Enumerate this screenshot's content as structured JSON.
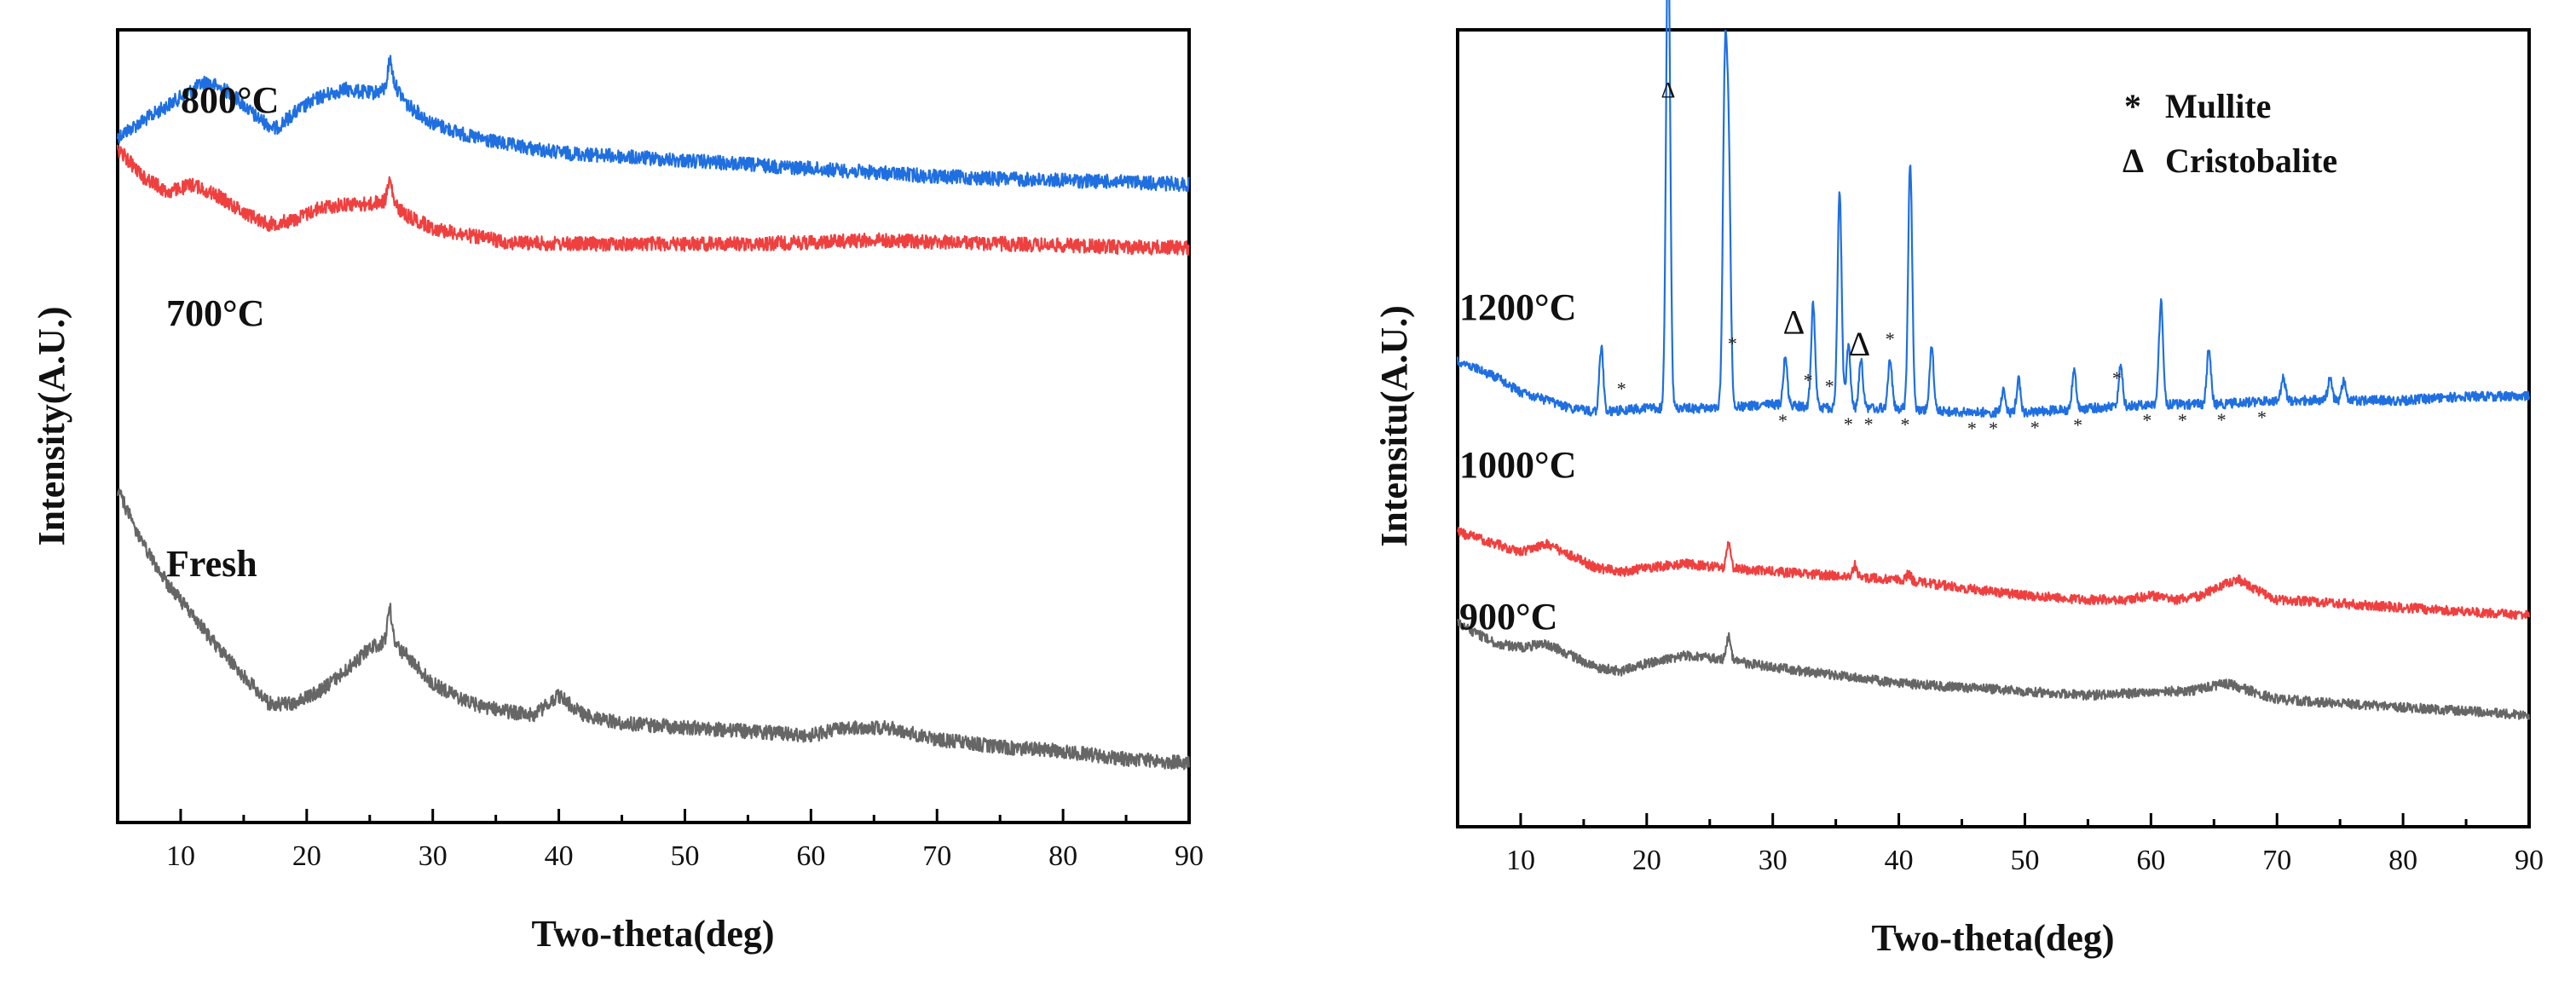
{
  "chart_data": [
    {
      "type": "line",
      "panel": "left",
      "xlabel": "Two-theta(deg)",
      "ylabel": "Intensity(A.U.)",
      "xlim": [
        5,
        90
      ],
      "x_ticks": [
        10,
        20,
        30,
        40,
        50,
        60,
        70,
        80,
        90
      ],
      "y_ticks_shown": false,
      "series": [
        {
          "name": "800°C",
          "color": "#1f6fe0",
          "offset": 0.8,
          "points": [
            [
              5,
              0.115
            ],
            [
              8,
              0.085
            ],
            [
              10,
              0.065
            ],
            [
              12,
              0.045
            ],
            [
              14,
              0.06
            ],
            [
              16,
              0.09
            ],
            [
              17.5,
              0.105
            ],
            [
              19,
              0.085
            ],
            [
              21,
              0.065
            ],
            [
              23,
              0.055
            ],
            [
              25,
              0.06
            ],
            [
              26.5,
              0.055
            ],
            [
              27,
              0.05
            ],
            [
              28,
              0.075
            ],
            [
              30,
              0.098
            ],
            [
              33,
              0.115
            ],
            [
              36,
              0.125
            ],
            [
              40,
              0.135
            ],
            [
              45,
              0.14
            ],
            [
              50,
              0.145
            ],
            [
              55,
              0.15
            ],
            [
              60,
              0.155
            ],
            [
              65,
              0.16
            ],
            [
              70,
              0.165
            ],
            [
              75,
              0.168
            ],
            [
              80,
              0.17
            ],
            [
              85,
              0.172
            ],
            [
              90,
              0.175
            ]
          ],
          "peaks": [
            [
              26.6,
              0.035
            ]
          ]
        },
        {
          "name": "700°C",
          "color": "#ef4040",
          "offset": 0.45,
          "points": [
            [
              5,
              0.0
            ],
            [
              7,
              0.035
            ],
            [
              9,
              0.055
            ],
            [
              11,
              0.045
            ],
            [
              13,
              0.06
            ],
            [
              15,
              0.08
            ],
            [
              17,
              0.095
            ],
            [
              19,
              0.09
            ],
            [
              21,
              0.075
            ],
            [
              23,
              0.07
            ],
            [
              25,
              0.07
            ],
            [
              26.5,
              0.065
            ],
            [
              28,
              0.085
            ],
            [
              30,
              0.1
            ],
            [
              33,
              0.11
            ],
            [
              36,
              0.118
            ],
            [
              40,
              0.12
            ],
            [
              45,
              0.12
            ],
            [
              50,
              0.12
            ],
            [
              55,
              0.12
            ],
            [
              60,
              0.118
            ],
            [
              65,
              0.115
            ],
            [
              70,
              0.118
            ],
            [
              75,
              0.12
            ],
            [
              80,
              0.122
            ],
            [
              85,
              0.124
            ],
            [
              90,
              0.125
            ]
          ],
          "peaks": [
            [
              26.6,
              0.025
            ]
          ]
        },
        {
          "name": "Fresh",
          "color": "#666666",
          "offset": 0.0,
          "points": [
            [
              5,
              0.0
            ],
            [
              7,
              0.07
            ],
            [
              9,
              0.12
            ],
            [
              11,
              0.16
            ],
            [
              13,
              0.2
            ],
            [
              15,
              0.235
            ],
            [
              17,
              0.27
            ],
            [
              19,
              0.27
            ],
            [
              21,
              0.255
            ],
            [
              23,
              0.23
            ],
            [
              25,
              0.2
            ],
            [
              26.5,
              0.19
            ],
            [
              28,
              0.21
            ],
            [
              30,
              0.245
            ],
            [
              33,
              0.27
            ],
            [
              36,
              0.28
            ],
            [
              38,
              0.285
            ],
            [
              40,
              0.26
            ],
            [
              42,
              0.285
            ],
            [
              45,
              0.295
            ],
            [
              50,
              0.3
            ],
            [
              55,
              0.305
            ],
            [
              60,
              0.31
            ],
            [
              63,
              0.3
            ],
            [
              66,
              0.3
            ],
            [
              70,
              0.315
            ],
            [
              75,
              0.325
            ],
            [
              80,
              0.33
            ],
            [
              85,
              0.34
            ],
            [
              90,
              0.345
            ]
          ],
          "peaks": [
            [
              26.6,
              0.04
            ]
          ]
        }
      ]
    },
    {
      "type": "line",
      "panel": "right",
      "xlabel": "Two-theta(deg)",
      "ylabel": "Intensitu(A.U.)",
      "xlim": [
        5,
        90
      ],
      "x_ticks": [
        10,
        20,
        30,
        40,
        50,
        60,
        70,
        80,
        90
      ],
      "y_ticks_shown": false,
      "legend": {
        "placement": "top-right",
        "entries": [
          {
            "marker": "*",
            "label": "Mullite"
          },
          {
            "marker": "Δ",
            "label": "Cristobalite"
          }
        ]
      },
      "series": [
        {
          "name": "1200°C",
          "color": "#1f6fe0",
          "baseline": [
            [
              5,
              0.415
            ],
            [
              8,
              0.435
            ],
            [
              10,
              0.455
            ],
            [
              12,
              0.465
            ],
            [
              14,
              0.475
            ],
            [
              16,
              0.48
            ],
            [
              20,
              0.475
            ],
            [
              25,
              0.475
            ],
            [
              30,
              0.47
            ],
            [
              35,
              0.475
            ],
            [
              40,
              0.475
            ],
            [
              45,
              0.48
            ],
            [
              50,
              0.48
            ],
            [
              55,
              0.475
            ],
            [
              60,
              0.47
            ],
            [
              65,
              0.47
            ],
            [
              70,
              0.465
            ],
            [
              75,
              0.465
            ],
            [
              80,
              0.465
            ],
            [
              85,
              0.46
            ],
            [
              90,
              0.46
            ]
          ],
          "peaks": [
            [
              16.4,
              0.08
            ],
            [
              21.7,
              0.62
            ],
            [
              26.2,
              0.4
            ],
            [
              26.5,
              0.3
            ],
            [
              31.0,
              0.06
            ],
            [
              33.2,
              0.13
            ],
            [
              35.3,
              0.27
            ],
            [
              36.0,
              0.08
            ],
            [
              37.0,
              0.06
            ],
            [
              39.3,
              0.06
            ],
            [
              40.9,
              0.31
            ],
            [
              42.6,
              0.08
            ],
            [
              48.3,
              0.03
            ],
            [
              49.5,
              0.04
            ],
            [
              53.9,
              0.05
            ],
            [
              57.6,
              0.05
            ],
            [
              60.8,
              0.13
            ],
            [
              64.6,
              0.07
            ],
            [
              70.5,
              0.03
            ],
            [
              74.2,
              0.03
            ],
            [
              75.3,
              0.025
            ]
          ]
        },
        {
          "name": "1000°C",
          "color": "#ef4040",
          "baseline": [
            [
              5,
              0.63
            ],
            [
              8,
              0.645
            ],
            [
              10,
              0.655
            ],
            [
              12,
              0.645
            ],
            [
              14,
              0.66
            ],
            [
              16,
              0.675
            ],
            [
              18,
              0.68
            ],
            [
              20,
              0.675
            ],
            [
              23,
              0.67
            ],
            [
              26,
              0.675
            ],
            [
              30,
              0.68
            ],
            [
              35,
              0.685
            ],
            [
              40,
              0.69
            ],
            [
              45,
              0.7
            ],
            [
              50,
              0.71
            ],
            [
              55,
              0.715
            ],
            [
              58,
              0.715
            ],
            [
              60,
              0.71
            ],
            [
              62,
              0.715
            ],
            [
              64,
              0.71
            ],
            [
              66,
              0.695
            ],
            [
              67,
              0.69
            ],
            [
              68,
              0.7
            ],
            [
              70,
              0.715
            ],
            [
              75,
              0.72
            ],
            [
              80,
              0.725
            ],
            [
              85,
              0.73
            ],
            [
              90,
              0.735
            ]
          ],
          "peaks": [
            [
              26.5,
              0.035
            ],
            [
              36.5,
              0.015
            ],
            [
              40.8,
              0.01
            ]
          ]
        },
        {
          "name": "900°C",
          "color": "#666666",
          "baseline": [
            [
              5,
              0.745
            ],
            [
              8,
              0.77
            ],
            [
              10,
              0.775
            ],
            [
              12,
              0.77
            ],
            [
              14,
              0.785
            ],
            [
              16,
              0.8
            ],
            [
              18,
              0.805
            ],
            [
              20,
              0.795
            ],
            [
              23,
              0.785
            ],
            [
              26,
              0.79
            ],
            [
              30,
              0.8
            ],
            [
              35,
              0.81
            ],
            [
              40,
              0.82
            ],
            [
              45,
              0.825
            ],
            [
              50,
              0.83
            ],
            [
              55,
              0.835
            ],
            [
              58,
              0.833
            ],
            [
              60,
              0.83
            ],
            [
              63,
              0.83
            ],
            [
              66,
              0.82
            ],
            [
              68,
              0.83
            ],
            [
              70,
              0.84
            ],
            [
              75,
              0.845
            ],
            [
              80,
              0.85
            ],
            [
              85,
              0.855
            ],
            [
              90,
              0.86
            ]
          ],
          "peaks": [
            [
              26.5,
              0.03
            ]
          ]
        }
      ],
      "annotations": {
        "cristobalite": [
          [
            21.7,
            "Δ"
          ],
          [
            31.0,
            "Δ"
          ],
          [
            36.2,
            "Δ"
          ]
        ],
        "mullite_above": [
          [
            18.0,
            "*"
          ],
          [
            26.8,
            "*"
          ],
          [
            32.8,
            "*"
          ],
          [
            34.5,
            "*"
          ],
          [
            39.3,
            "*"
          ],
          [
            57.3,
            "*"
          ]
        ],
        "mullite_below": [
          [
            30.8,
            "*"
          ],
          [
            36.0,
            "*"
          ],
          [
            37.6,
            "*"
          ],
          [
            40.5,
            "*"
          ],
          [
            45.8,
            "*"
          ],
          [
            47.5,
            "*"
          ],
          [
            50.8,
            "*"
          ],
          [
            54.2,
            "*"
          ],
          [
            59.7,
            "*"
          ],
          [
            62.5,
            "*"
          ],
          [
            65.6,
            "*"
          ],
          [
            68.8,
            "*"
          ]
        ]
      }
    }
  ],
  "labels": {
    "left_800": "800°C",
    "left_700": "700°C",
    "left_fresh": "Fresh",
    "right_1200": "1200°C",
    "right_1000": "1000°C",
    "right_900": "900°C",
    "legend_mullite_marker": "*",
    "legend_mullite": "Mullite",
    "legend_cristobalite_marker": "Δ",
    "legend_cristobalite": "Cristobalite",
    "cristobalite_top": "Δ",
    "cristobalite_31": "Δ",
    "cristobalite_36": "Δ"
  }
}
